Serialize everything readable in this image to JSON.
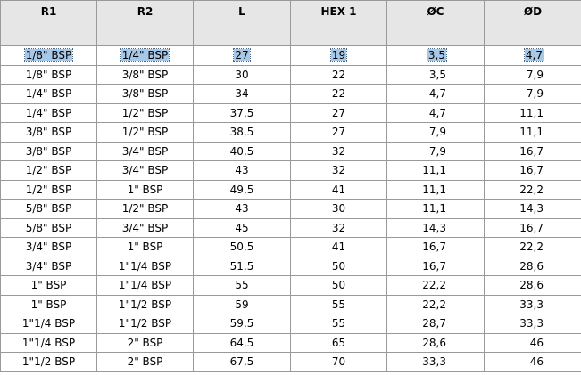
{
  "headers": [
    "R1",
    "R2",
    "L",
    "HEX 1",
    "ØC",
    "ØD"
  ],
  "rows": [
    [
      "1/8\" BSP",
      "1/4\" BSP",
      "27",
      "19",
      "3,5",
      "4,7"
    ],
    [
      "1/8\" BSP",
      "3/8\" BSP",
      "30",
      "22",
      "3,5",
      "7,9"
    ],
    [
      "1/4\" BSP",
      "3/8\" BSP",
      "34",
      "22",
      "4,7",
      "7,9"
    ],
    [
      "1/4\" BSP",
      "1/2\" BSP",
      "37,5",
      "27",
      "4,7",
      "11,1"
    ],
    [
      "3/8\" BSP",
      "1/2\" BSP",
      "38,5",
      "27",
      "7,9",
      "11,1"
    ],
    [
      "3/8\" BSP",
      "3/4\" BSP",
      "40,5",
      "32",
      "7,9",
      "16,7"
    ],
    [
      "1/2\" BSP",
      "3/4\" BSP",
      "43",
      "32",
      "11,1",
      "16,7"
    ],
    [
      "1/2\" BSP",
      "1\" BSP",
      "49,5",
      "41",
      "11,1",
      "22,2"
    ],
    [
      "5/8\" BSP",
      "1/2\" BSP",
      "43",
      "30",
      "11,1",
      "14,3"
    ],
    [
      "5/8\" BSP",
      "3/4\" BSP",
      "45",
      "32",
      "14,3",
      "16,7"
    ],
    [
      "3/4\" BSP",
      "1\" BSP",
      "50,5",
      "41",
      "16,7",
      "22,2"
    ],
    [
      "3/4\" BSP",
      "1\"1/4 BSP",
      "51,5",
      "50",
      "16,7",
      "28,6"
    ],
    [
      "1\" BSP",
      "1\"1/4 BSP",
      "55",
      "50",
      "22,2",
      "28,6"
    ],
    [
      "1\" BSP",
      "1\"1/2 BSP",
      "59",
      "55",
      "22,2",
      "33,3"
    ],
    [
      "1\"1/4 BSP",
      "1\"1/2 BSP",
      "59,5",
      "55",
      "28,7",
      "33,3"
    ],
    [
      "1\"1/4 BSP",
      "2\" BSP",
      "64,5",
      "65",
      "28,6",
      "46"
    ],
    [
      "1\"1/2 BSP",
      "2\" BSP",
      "67,5",
      "70",
      "33,3",
      "46"
    ]
  ],
  "highlighted_row": 0,
  "colors": {
    "header_bg": "#e6e6e6",
    "grid": "#999999",
    "highlight": "#a8c8e8"
  }
}
